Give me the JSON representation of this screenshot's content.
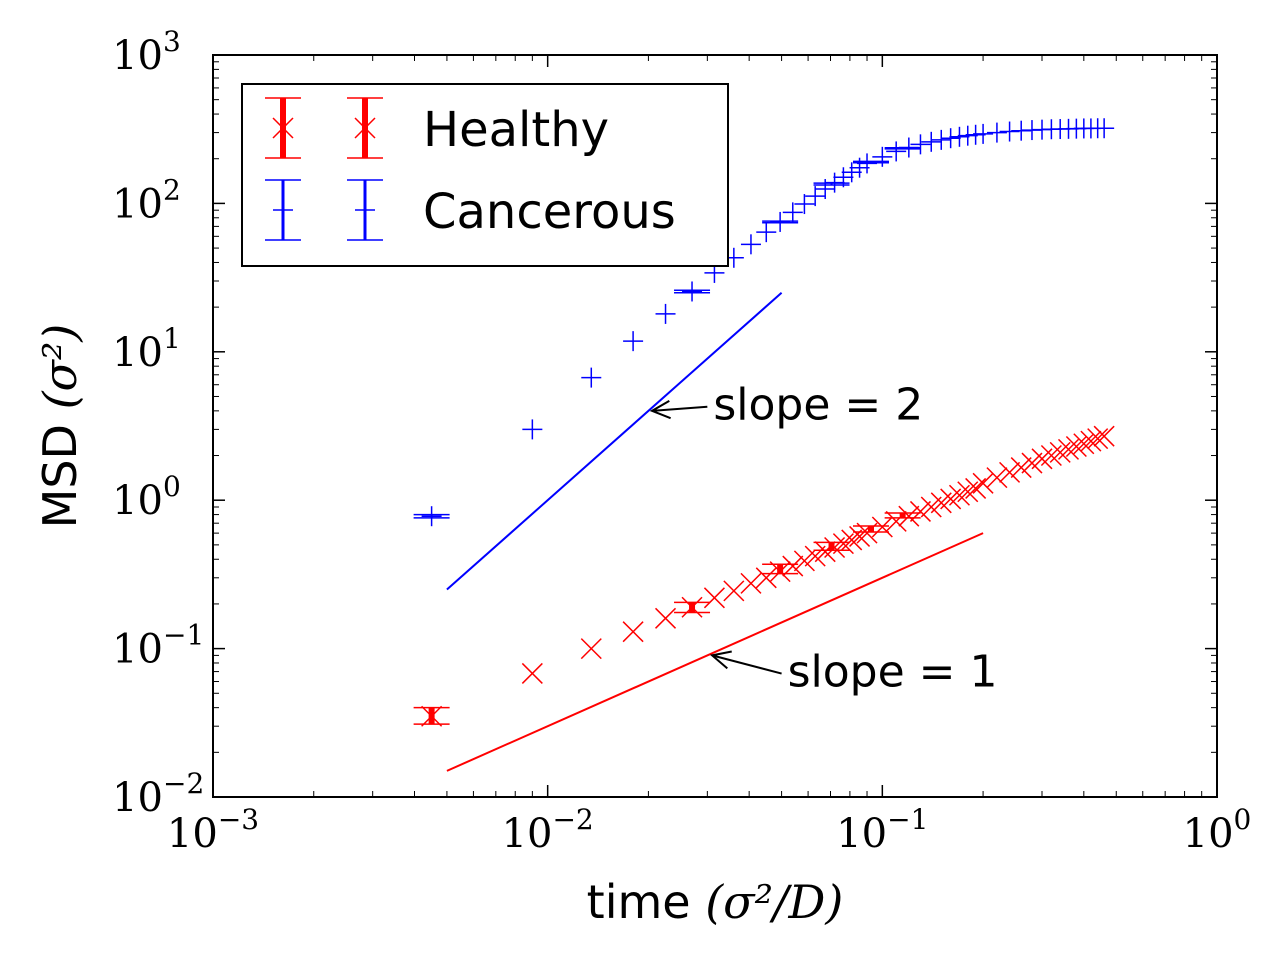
{
  "chart_data": {
    "type": "scatter",
    "xscale": "log",
    "yscale": "log",
    "xlim": [
      0.001,
      1
    ],
    "ylim": [
      0.01,
      1000
    ],
    "xlabel": "time",
    "xlabel_unit": "(σ²/D)",
    "ylabel": "MSD",
    "ylabel_unit": "(σ²)",
    "xticks": [
      {
        "base": "10",
        "exp": "−3",
        "value": 0.001
      },
      {
        "base": "10",
        "exp": "−2",
        "value": 0.01
      },
      {
        "base": "10",
        "exp": "−1",
        "value": 0.1
      },
      {
        "base": "10",
        "exp": "0",
        "value": 1
      }
    ],
    "yticks": [
      {
        "base": "10",
        "exp": "−2",
        "value": 0.01
      },
      {
        "base": "10",
        "exp": "−1",
        "value": 0.1
      },
      {
        "base": "10",
        "exp": "0",
        "value": 1
      },
      {
        "base": "10",
        "exp": "1",
        "value": 10
      },
      {
        "base": "10",
        "exp": "2",
        "value": 100
      },
      {
        "base": "10",
        "exp": "3",
        "value": 1000
      }
    ],
    "legend": {
      "placement": "upper-left",
      "entries": [
        {
          "label": "Healthy",
          "color": "#ff0000",
          "marker": "x"
        },
        {
          "label": "Cancerous",
          "color": "#0000ff",
          "marker": "+"
        }
      ]
    },
    "series": [
      {
        "name": "Healthy",
        "color": "#ff0000",
        "marker": "x",
        "x": [
          0.0045,
          0.009,
          0.0135,
          0.018,
          0.0225,
          0.027,
          0.0315,
          0.036,
          0.0405,
          0.045,
          0.0495,
          0.054,
          0.0585,
          0.063,
          0.0675,
          0.072,
          0.0765,
          0.081,
          0.0855,
          0.09,
          0.1,
          0.11,
          0.12,
          0.13,
          0.14,
          0.15,
          0.16,
          0.17,
          0.18,
          0.19,
          0.2,
          0.22,
          0.24,
          0.26,
          0.28,
          0.3,
          0.32,
          0.34,
          0.36,
          0.38,
          0.4,
          0.42,
          0.44,
          0.46
        ],
        "y": [
          0.035,
          0.068,
          0.1,
          0.13,
          0.16,
          0.19,
          0.22,
          0.245,
          0.275,
          0.3,
          0.33,
          0.36,
          0.39,
          0.42,
          0.45,
          0.48,
          0.51,
          0.54,
          0.57,
          0.6,
          0.66,
          0.72,
          0.78,
          0.84,
          0.9,
          0.96,
          1.02,
          1.08,
          1.14,
          1.2,
          1.3,
          1.42,
          1.54,
          1.66,
          1.78,
          1.9,
          2.0,
          2.1,
          2.2,
          2.3,
          2.4,
          2.5,
          2.6,
          2.7
        ],
        "errors": [
          {
            "x": 0.0045,
            "y": 0.035,
            "low": 0.031,
            "high": 0.04
          },
          {
            "x": 0.027,
            "y": 0.19,
            "low": 0.175,
            "high": 0.205
          },
          {
            "x": 0.0495,
            "y": 0.345,
            "low": 0.32,
            "high": 0.37
          },
          {
            "x": 0.0705,
            "y": 0.49,
            "low": 0.46,
            "high": 0.52
          },
          {
            "x": 0.0925,
            "y": 0.64,
            "low": 0.61,
            "high": 0.67
          },
          {
            "x": 0.115,
            "y": 0.79,
            "low": 0.76,
            "high": 0.82
          }
        ]
      },
      {
        "name": "Cancerous",
        "color": "#0000ff",
        "marker": "+",
        "x": [
          0.0045,
          0.009,
          0.0135,
          0.018,
          0.0225,
          0.027,
          0.0315,
          0.036,
          0.0405,
          0.045,
          0.0495,
          0.054,
          0.0585,
          0.063,
          0.0675,
          0.072,
          0.0765,
          0.081,
          0.0855,
          0.09,
          0.1,
          0.11,
          0.12,
          0.13,
          0.14,
          0.15,
          0.16,
          0.17,
          0.18,
          0.19,
          0.2,
          0.22,
          0.24,
          0.26,
          0.28,
          0.3,
          0.32,
          0.34,
          0.36,
          0.38,
          0.4,
          0.42,
          0.44,
          0.46
        ],
        "y": [
          0.78,
          3.0,
          6.7,
          11.8,
          18.0,
          25.5,
          34,
          43,
          53,
          64,
          75,
          87,
          99,
          112,
          125,
          138,
          150,
          162,
          174,
          186,
          206,
          224,
          238,
          250,
          260,
          268,
          275,
          281,
          286,
          290,
          294,
          300,
          305,
          309,
          312,
          314,
          316,
          317,
          318,
          319,
          320,
          320,
          321,
          321
        ],
        "errors": [
          {
            "x": 0.0045,
            "y": 0.78,
            "low": 0.76,
            "high": 0.8
          },
          {
            "x": 0.027,
            "y": 25.5,
            "low": 25,
            "high": 26
          },
          {
            "x": 0.0495,
            "y": 75,
            "low": 74,
            "high": 76
          },
          {
            "x": 0.0705,
            "y": 135,
            "low": 133,
            "high": 137
          },
          {
            "x": 0.0925,
            "y": 190,
            "low": 188,
            "high": 192
          },
          {
            "x": 0.115,
            "y": 235,
            "low": 233,
            "high": 237
          }
        ]
      }
    ],
    "reference_lines": [
      {
        "name": "slope-2-line",
        "color": "#0000ff",
        "x": [
          0.005,
          0.05
        ],
        "y": [
          0.25,
          25
        ]
      },
      {
        "name": "slope-1-line",
        "color": "#ff0000",
        "x": [
          0.005,
          0.2
        ],
        "y": [
          0.015,
          0.6
        ]
      }
    ],
    "annotations": [
      {
        "name": "slope-2-annotation",
        "text": "slope = 2",
        "text_x": 0.03,
        "text_y": 4.4,
        "arrow_x": 0.0205,
        "arrow_y": 4.0
      },
      {
        "name": "slope-1-annotation",
        "text": "slope = 1",
        "text_x": 0.05,
        "text_y": 0.07,
        "arrow_x": 0.031,
        "arrow_y": 0.09
      }
    ]
  }
}
